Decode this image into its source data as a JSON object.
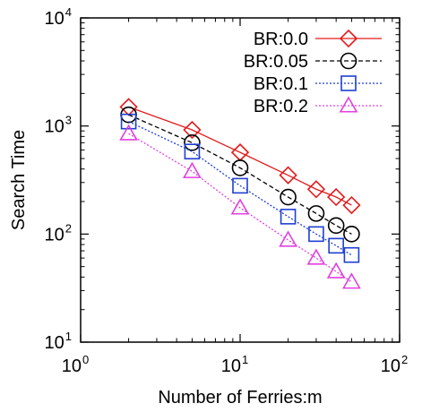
{
  "chart_data": {
    "type": "line",
    "xlabel": "Number of Ferries:m",
    "ylabel": "Search Time",
    "x_scale": "log",
    "y_scale": "log",
    "xlim": [
      1,
      100
    ],
    "ylim": [
      10,
      10000
    ],
    "x_ticks": [
      {
        "base": "10",
        "exp": "0",
        "value": 1
      },
      {
        "base": "10",
        "exp": "1",
        "value": 10
      },
      {
        "base": "10",
        "exp": "2",
        "value": 100
      }
    ],
    "y_ticks": [
      {
        "base": "10",
        "exp": "1",
        "value": 10
      },
      {
        "base": "10",
        "exp": "2",
        "value": 100
      },
      {
        "base": "10",
        "exp": "3",
        "value": 1000
      },
      {
        "base": "10",
        "exp": "4",
        "value": 10000
      }
    ],
    "grid": false,
    "legend_position": "top-right",
    "series": [
      {
        "name": "BR:0.0",
        "color": "#e41a1c",
        "dash": "solid",
        "marker": "diamond",
        "x": [
          2,
          5,
          10,
          20,
          30,
          40,
          50
        ],
        "y": [
          1500,
          920,
          570,
          350,
          260,
          220,
          185
        ]
      },
      {
        "name": "BR:0.05",
        "color": "#000000",
        "dash": "dashed",
        "marker": "circle",
        "x": [
          2,
          5,
          10,
          20,
          30,
          40,
          50
        ],
        "y": [
          1270,
          700,
          410,
          220,
          155,
          120,
          100
        ]
      },
      {
        "name": "BR:0.1",
        "color": "#1f3fd0",
        "dash": "dotted",
        "marker": "square",
        "x": [
          2,
          5,
          10,
          20,
          30,
          40,
          50
        ],
        "y": [
          1100,
          580,
          280,
          145,
          100,
          78,
          64
        ]
      },
      {
        "name": "BR:0.2",
        "color": "#e040e0",
        "dash": "dotted",
        "marker": "triangle",
        "x": [
          2,
          5,
          10,
          20,
          30,
          40,
          50
        ],
        "y": [
          850,
          380,
          175,
          88,
          60,
          45,
          36
        ]
      }
    ]
  }
}
